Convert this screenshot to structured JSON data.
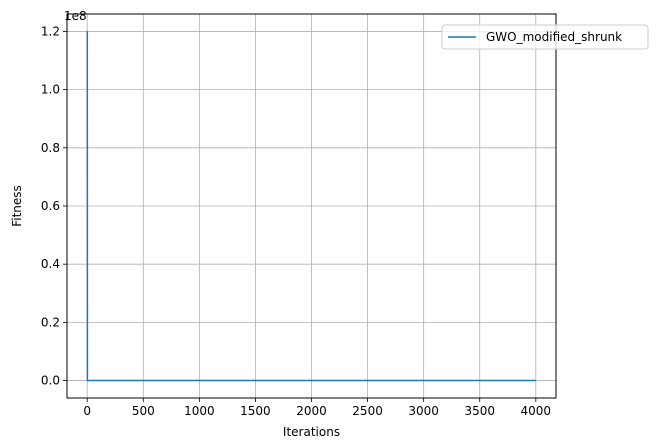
{
  "chart_data": {
    "type": "line",
    "xlabel": "Iterations",
    "ylabel": "Fitness",
    "y_offset_label": "1e8",
    "xlim": [
      -180,
      4180
    ],
    "ylim": [
      -6000000,
      126000000
    ],
    "xticks": [
      0,
      500,
      1000,
      1500,
      2000,
      2500,
      3000,
      3500,
      4000
    ],
    "xtick_labels": [
      "0",
      "500",
      "1000",
      "1500",
      "2000",
      "2500",
      "3000",
      "3500",
      "4000"
    ],
    "yticks": [
      0,
      20000000,
      40000000,
      60000000,
      80000000,
      100000000,
      120000000
    ],
    "ytick_labels": [
      "0.0",
      "0.2",
      "0.4",
      "0.6",
      "0.8",
      "1.0",
      "1.2"
    ],
    "grid": true,
    "legend_position": "top-right",
    "series": [
      {
        "name": "GWO_modified_shrunk",
        "color": "#1f77b4",
        "x": [
          0,
          1,
          2,
          5,
          10,
          100,
          1000,
          2000,
          3000,
          4000
        ],
        "y": [
          120000000,
          120000000,
          0,
          0,
          0,
          0,
          0,
          0,
          0,
          0
        ]
      }
    ]
  }
}
